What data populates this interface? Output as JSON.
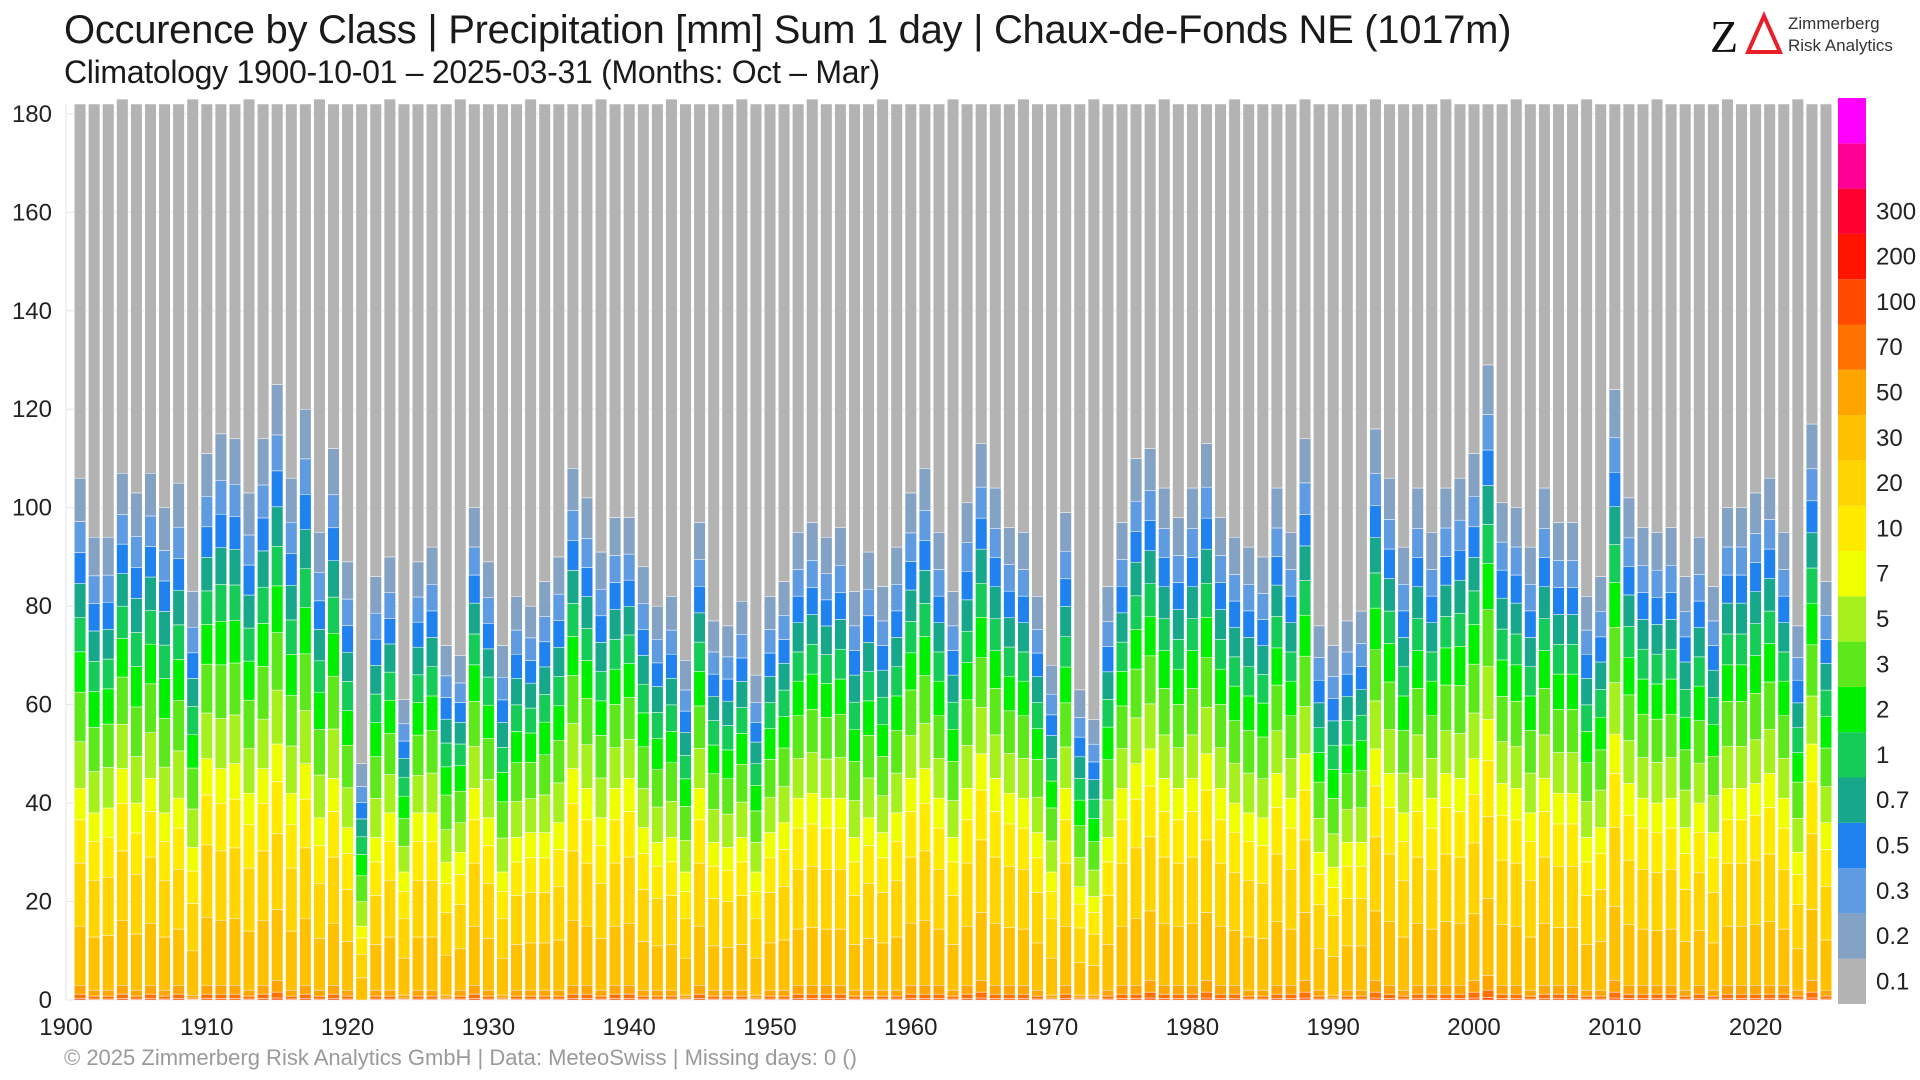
{
  "title": "Occurence by Class | Precipitation [mm] Sum 1 day | Chaux-de-Fonds  NE (1017m)",
  "subtitle": "Climatology 1900-10-01 – 2025-03-31 (Months: Oct – Mar)",
  "footer": "©  2025 Zimmerberg Risk Analytics GmbH | Data: MeteoSwiss | Missing days: 0 ()",
  "logo": {
    "line1": "Zimmerberg",
    "line2": "Risk Analytics",
    "mark": "ZΔ",
    "mark_colors": [
      "#111111",
      "#e8202a"
    ]
  },
  "chart_data": {
    "type": "bar",
    "stacked": true,
    "xlim": [
      1900,
      2025
    ],
    "ylim": [
      0,
      182
    ],
    "x_ticks": [
      1900,
      1910,
      1920,
      1930,
      1940,
      1950,
      1960,
      1970,
      1980,
      1990,
      2000,
      2010,
      2020
    ],
    "y_ticks": [
      0,
      20,
      40,
      60,
      80,
      100,
      120,
      140,
      160,
      180
    ],
    "grid": true,
    "legend_position": "right colorbar",
    "classes": [
      {
        "label": "0.1",
        "color": "#b3b3b3"
      },
      {
        "label": "0.2",
        "color": "#84a2c4"
      },
      {
        "label": "0.3",
        "color": "#5e9be0"
      },
      {
        "label": "0.5",
        "color": "#1f82ef"
      },
      {
        "label": "0.7",
        "color": "#17a88c"
      },
      {
        "label": "1",
        "color": "#16cc58"
      },
      {
        "label": "2",
        "color": "#00f000"
      },
      {
        "label": "3",
        "color": "#5ce81a"
      },
      {
        "label": "5",
        "color": "#a6f01e"
      },
      {
        "label": "7",
        "color": "#f0ff00"
      },
      {
        "label": "10",
        "color": "#ffea00"
      },
      {
        "label": "20",
        "color": "#ffd400"
      },
      {
        "label": "30",
        "color": "#ffc000"
      },
      {
        "label": "50",
        "color": "#ffa500"
      },
      {
        "label": "70",
        "color": "#ff7200"
      },
      {
        "label": "100",
        "color": "#ff4a00"
      },
      {
        "label": "200",
        "color": "#ff1400"
      },
      {
        "label": "300",
        "color": "#ff0030"
      },
      {
        "label": "",
        "color": "#ff0096"
      },
      {
        "label": "",
        "color": "#ff00ff"
      }
    ],
    "years": [
      1901,
      1902,
      1903,
      1904,
      1905,
      1906,
      1907,
      1908,
      1909,
      1910,
      1911,
      1912,
      1913,
      1914,
      1915,
      1916,
      1917,
      1918,
      1919,
      1920,
      1921,
      1922,
      1923,
      1924,
      1925,
      1926,
      1927,
      1928,
      1929,
      1930,
      1931,
      1932,
      1933,
      1934,
      1935,
      1936,
      1937,
      1938,
      1939,
      1940,
      1941,
      1942,
      1943,
      1944,
      1945,
      1946,
      1947,
      1948,
      1949,
      1950,
      1951,
      1952,
      1953,
      1954,
      1955,
      1956,
      1957,
      1958,
      1959,
      1960,
      1961,
      1962,
      1963,
      1964,
      1965,
      1966,
      1967,
      1968,
      1969,
      1970,
      1971,
      1972,
      1973,
      1974,
      1975,
      1976,
      1977,
      1978,
      1979,
      1980,
      1981,
      1982,
      1983,
      1984,
      1985,
      1986,
      1987,
      1988,
      1989,
      1990,
      1991,
      1992,
      1993,
      1994,
      1995,
      1996,
      1997,
      1998,
      1999,
      2000,
      2001,
      2002,
      2003,
      2004,
      2005,
      2006,
      2007,
      2008,
      2009,
      2010,
      2011,
      2012,
      2013,
      2014,
      2015,
      2016,
      2017,
      2018,
      2019,
      2020,
      2021,
      2022,
      2023,
      2024,
      2025
    ],
    "totals": [
      182,
      182,
      182,
      183,
      182,
      182,
      182,
      182,
      183,
      182,
      182,
      182,
      183,
      182,
      182,
      182,
      182,
      183,
      182,
      182,
      182,
      182,
      183,
      182,
      182,
      182,
      182,
      183,
      182,
      182,
      182,
      182,
      183,
      182,
      182,
      182,
      182,
      183,
      182,
      182,
      182,
      182,
      183,
      182,
      182,
      182,
      182,
      183,
      182,
      182,
      182,
      182,
      183,
      182,
      182,
      182,
      182,
      183,
      182,
      182,
      182,
      182,
      183,
      182,
      182,
      182,
      182,
      183,
      182,
      182,
      182,
      182,
      183,
      182,
      182,
      182,
      182,
      183,
      182,
      182,
      182,
      182,
      183,
      182,
      182,
      182,
      182,
      183,
      182,
      182,
      182,
      182,
      183,
      182,
      182,
      182,
      182,
      183,
      182,
      182,
      182,
      182,
      183,
      182,
      182,
      182,
      182,
      183,
      182,
      182,
      182,
      182,
      183,
      182,
      182,
      182,
      182,
      183,
      182,
      182,
      182,
      182,
      183,
      182,
      182
    ],
    "wet_days": [
      106,
      94,
      94,
      107,
      103,
      107,
      100,
      105,
      83,
      111,
      115,
      114,
      103,
      114,
      125,
      106,
      120,
      95,
      112,
      89,
      48,
      86,
      90,
      61,
      89,
      92,
      72,
      70,
      100,
      89,
      72,
      82,
      80,
      85,
      90,
      108,
      102,
      91,
      98,
      98,
      88,
      80,
      82,
      69,
      97,
      77,
      76,
      81,
      66,
      82,
      85,
      95,
      97,
      94,
      96,
      83,
      91,
      84,
      92,
      103,
      108,
      95,
      83,
      101,
      113,
      104,
      96,
      95,
      82,
      68,
      99,
      63,
      57,
      84,
      97,
      110,
      112,
      104,
      98,
      104,
      113,
      98,
      94,
      92,
      90,
      104,
      95,
      114,
      76,
      72,
      77,
      79,
      116,
      106,
      92,
      104,
      95,
      104,
      106,
      111,
      129,
      101,
      100,
      92,
      104,
      97,
      97,
      82,
      86,
      124,
      102,
      96,
      95,
      96,
      86,
      94,
      84,
      100,
      100,
      103,
      106,
      95,
      76,
      117,
      85
    ],
    "heavy_days": [
      40,
      36,
      37,
      44,
      38,
      42,
      36,
      38,
      30,
      46,
      44,
      45,
      40,
      44,
      48,
      40,
      45,
      35,
      42,
      33,
      15,
      31,
      36,
      25,
      36,
      36,
      27,
      28,
      40,
      35,
      25,
      31,
      32,
      32,
      34,
      44,
      40,
      35,
      40,
      42,
      33,
      30,
      31,
      25,
      40,
      30,
      29,
      31,
      25,
      32,
      34,
      38,
      39,
      38,
      38,
      31,
      35,
      32,
      36,
      42,
      44,
      38,
      31,
      40,
      46,
      42,
      39,
      38,
      32,
      25,
      40,
      22,
      20,
      31,
      40,
      45,
      47,
      42,
      40,
      42,
      46,
      40,
      37,
      36,
      35,
      43,
      38,
      46,
      28,
      26,
      30,
      30,
      47,
      43,
      36,
      42,
      38,
      43,
      42,
      45,
      52,
      41,
      40,
      36,
      42,
      39,
      39,
      31,
      33,
      50,
      41,
      38,
      37,
      38,
      33,
      37,
      32,
      40,
      40,
      41,
      43,
      38,
      28,
      48,
      34
    ],
    "max_class_days": [
      3,
      2,
      2,
      3,
      2,
      3,
      2,
      3,
      1,
      3,
      3,
      3,
      2,
      3,
      4,
      2,
      3,
      2,
      3,
      2,
      0,
      2,
      2,
      1,
      2,
      2,
      1,
      2,
      3,
      2,
      1,
      2,
      2,
      2,
      2,
      3,
      3,
      2,
      3,
      3,
      2,
      2,
      2,
      1,
      3,
      2,
      2,
      2,
      1,
      2,
      2,
      3,
      3,
      3,
      3,
      2,
      2,
      2,
      2,
      3,
      3,
      3,
      2,
      3,
      4,
      3,
      3,
      3,
      2,
      1,
      3,
      1,
      1,
      2,
      3,
      3,
      4,
      3,
      3,
      3,
      4,
      3,
      3,
      2,
      2,
      3,
      3,
      4,
      2,
      1,
      2,
      2,
      4,
      3,
      2,
      3,
      3,
      3,
      3,
      4,
      5,
      3,
      3,
      2,
      3,
      3,
      3,
      2,
      2,
      4,
      3,
      3,
      3,
      3,
      2,
      3,
      2,
      3,
      3,
      3,
      3,
      3,
      2,
      4,
      2
    ]
  }
}
